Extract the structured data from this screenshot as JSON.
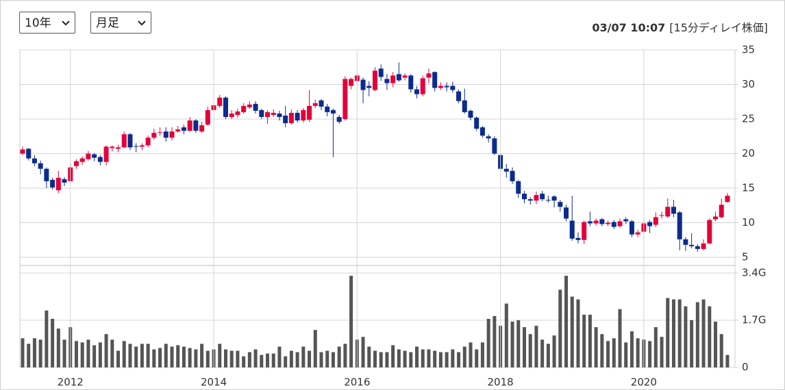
{
  "controls": {
    "period": "10年",
    "interval": "月足"
  },
  "timestamp": "03/07 10:07",
  "delay_note": "[15分ディレイ株価]",
  "chart_data": [
    {
      "type": "candlestick",
      "up_color": "#e4003a",
      "down_color": "#0b2b8e",
      "ylim": [
        5,
        35
      ],
      "yticks": [
        5,
        10,
        15,
        20,
        25,
        30,
        35
      ],
      "grid": true,
      "open": [
        20.0,
        20.7,
        19.3,
        18.6,
        17.8,
        16.2,
        14.7,
        16.3,
        16.0,
        18.2,
        18.8,
        19.2,
        19.9,
        19.5,
        18.8,
        20.8,
        20.7,
        20.9,
        22.8,
        21.1,
        21.0,
        21.2,
        22.3,
        23.0,
        23.2,
        22.3,
        23.2,
        23.8,
        23.3,
        24.8,
        23.2,
        24.2,
        26.3,
        26.9,
        28.1,
        25.3,
        25.6,
        26.0,
        26.7,
        27.2,
        26.3,
        25.3,
        25.6,
        25.8,
        25.5,
        24.4,
        25.9,
        24.8,
        24.9,
        26.9,
        27.7,
        26.8,
        26.3,
        25.3,
        25.0,
        29.8,
        30.5,
        30.7,
        29.8,
        29.2,
        32.3,
        30.8,
        30.2,
        31.5,
        31.0,
        31.3,
        29.3,
        28.6,
        31.0,
        31.8,
        29.5,
        29.8,
        29.8,
        29.0,
        27.7,
        26.2,
        25.2,
        23.8,
        22.5,
        22.2,
        19.8,
        17.8,
        17.5,
        16.0,
        14.2,
        13.4,
        13.2,
        14.2,
        13.3,
        13.8,
        13.0,
        12.2,
        10.3,
        7.8,
        7.5,
        10.2,
        9.9,
        10.5,
        9.8,
        10.1,
        9.5,
        10.5,
        10.2,
        8.3,
        8.7,
        10.1,
        9.7,
        11.0,
        10.9,
        12.3,
        11.5,
        7.6,
        6.8,
        6.6,
        6.2,
        7.0,
        10.5,
        10.8,
        13.0
      ],
      "high": [
        21.0,
        20.8,
        19.8,
        19.0,
        18.0,
        16.5,
        17.5,
        16.6,
        18.5,
        19.2,
        19.6,
        20.4,
        20.1,
        19.8,
        21.2,
        21.2,
        21.3,
        23.2,
        23.0,
        21.5,
        21.5,
        22.6,
        23.6,
        23.8,
        23.8,
        23.8,
        24.0,
        24.2,
        25.3,
        25.0,
        24.6,
        26.8,
        27.6,
        28.5,
        28.3,
        26.3,
        26.5,
        27.3,
        27.6,
        27.6,
        26.5,
        26.3,
        26.4,
        26.2,
        26.9,
        26.4,
        26.3,
        26.6,
        29.2,
        27.8,
        27.9,
        27.2,
        26.5,
        25.6,
        31.2,
        31.0,
        31.6,
        31.0,
        30.5,
        32.5,
        32.9,
        31.5,
        31.8,
        33.2,
        31.6,
        31.5,
        29.8,
        31.3,
        32.3,
        31.9,
        30.3,
        30.3,
        30.4,
        29.3,
        29.4,
        26.4,
        25.4,
        24.0,
        22.8,
        22.5,
        20.0,
        18.5,
        18.0,
        16.2,
        14.6,
        13.7,
        14.5,
        14.6,
        13.9,
        14.0,
        13.3,
        12.6,
        13.9,
        8.6,
        10.3,
        11.6,
        10.6,
        10.7,
        10.3,
        10.4,
        10.6,
        10.8,
        10.4,
        9.0,
        10.3,
        10.4,
        11.5,
        11.6,
        13.5,
        13.3,
        11.7,
        7.9,
        8.5,
        6.9,
        7.6,
        10.6,
        11.6,
        13.5,
        14.3
      ],
      "low": [
        19.8,
        19.0,
        18.2,
        17.0,
        15.0,
        14.8,
        14.3,
        15.3,
        15.8,
        17.8,
        18.4,
        19.0,
        18.9,
        18.3,
        18.3,
        20.3,
        20.2,
        20.8,
        20.5,
        20.2,
        20.5,
        20.9,
        22.0,
        22.6,
        21.7,
        21.9,
        23.0,
        22.8,
        23.2,
        23.0,
        23.0,
        24.0,
        26.0,
        26.6,
        25.0,
        25.0,
        25.2,
        25.8,
        26.5,
        25.8,
        25.0,
        24.3,
        25.3,
        24.8,
        23.8,
        24.2,
        24.5,
        24.5,
        24.6,
        26.6,
        26.3,
        25.4,
        19.5,
        24.3,
        24.8,
        29.3,
        30.2,
        27.3,
        28.3,
        29.0,
        30.5,
        29.2,
        29.6,
        30.4,
        30.6,
        28.8,
        28.0,
        28.3,
        30.2,
        29.0,
        29.2,
        29.0,
        28.8,
        27.3,
        25.8,
        24.8,
        23.3,
        22.3,
        21.6,
        19.8,
        17.5,
        16.5,
        15.6,
        13.6,
        12.8,
        12.6,
        12.7,
        13.1,
        12.9,
        12.2,
        11.6,
        10.2,
        7.4,
        7.0,
        6.9,
        9.5,
        9.6,
        9.5,
        9.5,
        9.1,
        9.3,
        9.8,
        7.9,
        7.9,
        8.5,
        8.5,
        9.4,
        10.6,
        10.7,
        10.8,
        6.0,
        5.9,
        6.3,
        5.8,
        6.0,
        6.9,
        10.2,
        10.6,
        12.9
      ],
      "close": [
        20.6,
        19.3,
        18.6,
        17.8,
        16.0,
        15.1,
        16.5,
        15.8,
        18.0,
        18.9,
        19.3,
        20.0,
        19.4,
        18.8,
        21.0,
        21.0,
        20.9,
        22.8,
        20.9,
        21.0,
        21.2,
        22.3,
        23.0,
        23.1,
        22.3,
        23.2,
        23.5,
        23.3,
        24.8,
        23.3,
        24.1,
        26.3,
        27.0,
        28.1,
        25.3,
        25.8,
        26.1,
        26.9,
        27.1,
        26.2,
        25.3,
        26.0,
        25.9,
        25.3,
        24.4,
        25.9,
        24.8,
        26.3,
        26.9,
        27.3,
        26.8,
        26.0,
        25.8,
        24.6,
        30.8,
        30.8,
        31.3,
        29.2,
        29.5,
        32.0,
        31.1,
        30.2,
        31.3,
        30.6,
        31.3,
        29.3,
        28.6,
        30.9,
        31.6,
        29.5,
        29.8,
        29.6,
        29.2,
        27.6,
        26.0,
        25.2,
        23.6,
        22.6,
        22.2,
        20.0,
        17.8,
        17.4,
        16.0,
        14.2,
        13.4,
        13.2,
        14.0,
        13.4,
        13.2,
        13.2,
        12.3,
        10.6,
        7.7,
        7.5,
        10.1,
        9.9,
        10.3,
        9.8,
        10.0,
        9.4,
        10.2,
        10.2,
        8.3,
        8.6,
        9.9,
        9.5,
        10.8,
        11.1,
        12.3,
        11.3,
        7.6,
        6.8,
        6.6,
        6.2,
        7.0,
        10.4,
        10.9,
        12.6,
        13.9
      ]
    },
    {
      "type": "bar",
      "color": "#555555",
      "ylim": [
        0,
        3.4
      ],
      "yticks": [
        0,
        {
          "value": 1.7,
          "label": "1.7G"
        },
        {
          "value": 3.4,
          "label": "3.4G"
        }
      ],
      "categories": [
        null,
        null,
        null,
        null,
        null,
        null,
        null,
        null,
        "2012",
        null,
        null,
        null,
        null,
        null,
        null,
        null,
        null,
        null,
        null,
        null,
        null,
        null,
        null,
        null,
        null,
        null,
        null,
        null,
        null,
        null,
        null,
        null,
        "2014",
        null,
        null,
        null,
        null,
        null,
        null,
        null,
        null,
        null,
        null,
        null,
        null,
        null,
        null,
        null,
        null,
        null,
        null,
        null,
        null,
        null,
        null,
        null,
        "2016",
        null,
        null,
        null,
        null,
        null,
        null,
        null,
        null,
        null,
        null,
        null,
        null,
        null,
        null,
        null,
        null,
        null,
        null,
        null,
        null,
        null,
        null,
        null,
        "2018",
        null,
        null,
        null,
        null,
        null,
        null,
        null,
        null,
        null,
        null,
        null,
        null,
        null,
        null,
        null,
        null,
        null,
        null,
        null,
        null,
        null,
        null,
        null,
        "2020",
        null,
        null,
        null,
        null,
        null,
        null,
        null,
        null,
        null,
        null,
        null,
        null,
        null,
        null
      ],
      "values": [
        1.05,
        0.85,
        1.05,
        1.0,
        2.05,
        1.75,
        1.4,
        1.0,
        1.45,
        0.95,
        0.9,
        1.0,
        0.8,
        0.9,
        1.2,
        1.0,
        0.6,
        0.95,
        0.85,
        0.75,
        0.85,
        0.85,
        0.65,
        0.7,
        0.85,
        0.75,
        0.8,
        0.75,
        0.7,
        0.65,
        0.85,
        0.6,
        0.65,
        0.85,
        0.65,
        0.6,
        0.6,
        0.4,
        0.55,
        0.65,
        0.45,
        0.5,
        0.5,
        0.75,
        0.4,
        0.6,
        0.55,
        0.75,
        0.6,
        1.35,
        0.55,
        0.6,
        0.55,
        0.75,
        0.85,
        3.3,
        1.0,
        1.1,
        0.75,
        0.6,
        0.55,
        0.55,
        0.8,
        0.65,
        0.6,
        0.55,
        0.75,
        0.65,
        0.65,
        0.6,
        0.55,
        0.55,
        0.65,
        0.55,
        0.75,
        0.9,
        0.65,
        0.9,
        1.75,
        1.85,
        1.5,
        2.3,
        1.65,
        1.7,
        1.45,
        1.2,
        1.5,
        1.0,
        0.85,
        1.15,
        2.8,
        3.3,
        2.55,
        2.45,
        1.9,
        1.9,
        1.45,
        1.2,
        0.95,
        1.05,
        2.1,
        0.9,
        1.3,
        1.05,
        1.0,
        0.95,
        1.45,
        1.1,
        2.5,
        2.45,
        2.45,
        2.2,
        1.7,
        2.35,
        2.45,
        2.2,
        1.65,
        1.2,
        0.45
      ]
    }
  ]
}
